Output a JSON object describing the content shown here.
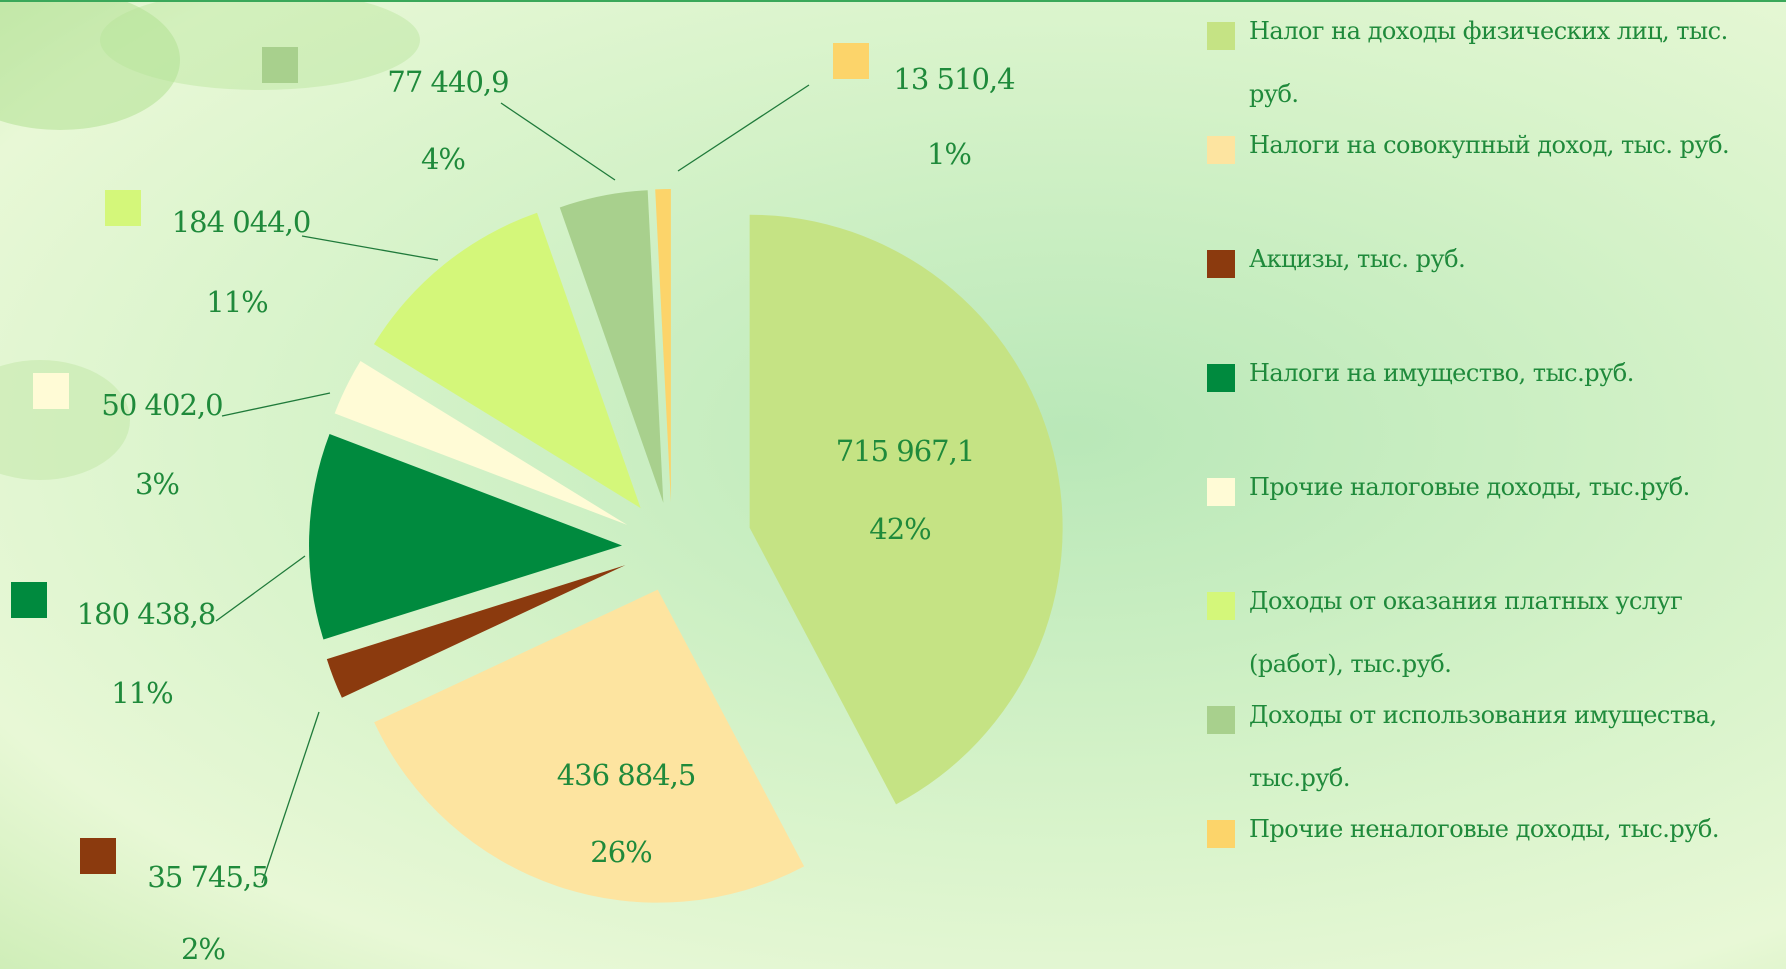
{
  "chart_data": {
    "type": "pie",
    "categories": [
      "Налог на доходы физических лиц, тыс. руб.",
      "Налоги на совокупный доход, тыс. руб.",
      "Акцизы, тыс. руб.",
      "Налоги на имущество, тыс.руб.",
      "Прочие налоговые доходы, тыс.руб.",
      "Доходы от оказания платных услуг (работ), тыс.руб.",
      "Доходы от использования имущества, тыс.руб.",
      "Прочие неналоговые доходы, тыс.руб."
    ],
    "values": [
      715967.1,
      436884.5,
      35745.5,
      180438.8,
      50402.0,
      184044.0,
      77440.9,
      13510.4
    ],
    "value_labels": [
      "715 967,1",
      "436 884,5",
      "35 745,5",
      "180 438,8",
      "50 402,0",
      "184 044,0",
      "77 440,9",
      "13 510,4"
    ],
    "percent_labels": [
      "42%",
      "26%",
      "2%",
      "11%",
      "3%",
      "11%",
      "4%",
      "1%"
    ],
    "colors": [
      "#c5e384",
      "#fde4a0",
      "#8b3a0e",
      "#008a3e",
      "#fffbd6",
      "#d4f77a",
      "#a8d08d",
      "#fcd46a"
    ],
    "legend": "right"
  }
}
